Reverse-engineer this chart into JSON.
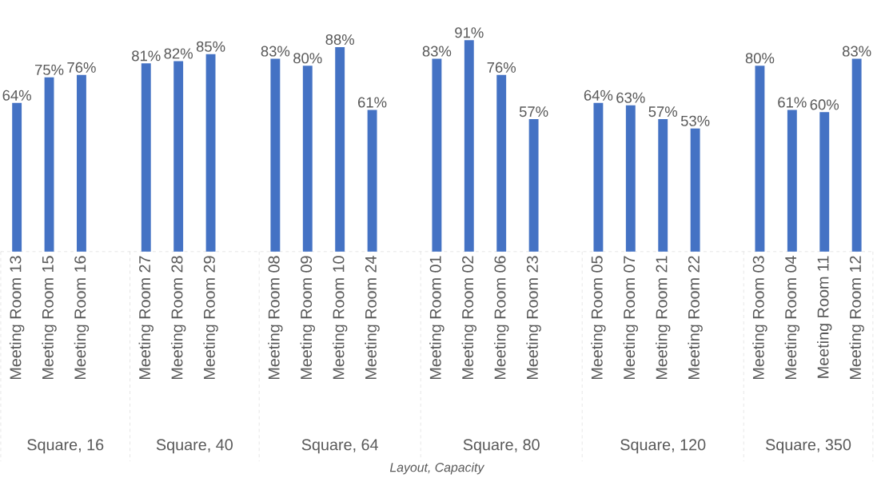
{
  "chart_data": {
    "type": "bar",
    "categories": [
      "Meeting Room 13",
      "Meeting Room 15",
      "Meeting Room 16",
      null,
      "Meeting Room 27",
      "Meeting Room 28",
      "Meeting Room 29",
      null,
      "Meeting Room 08",
      "Meeting Room 09",
      "Meeting Room 10",
      "Meeting Room 24",
      null,
      "Meeting Room 01",
      "Meeting Room 02",
      "Meeting Room 06",
      "Meeting Room 23",
      null,
      "Meeting Room 05",
      "Meeting Room 07",
      "Meeting Room 21",
      "Meeting Room 22",
      null,
      "Meeting Room 03",
      "Meeting Room 04",
      "Meeting Room 11",
      "Meeting Room 12"
    ],
    "values": [
      64,
      75,
      76,
      null,
      81,
      82,
      85,
      null,
      83,
      80,
      88,
      61,
      null,
      83,
      91,
      76,
      57,
      null,
      64,
      63,
      57,
      53,
      null,
      80,
      61,
      60,
      83
    ],
    "value_labels": [
      "64%",
      "75%",
      "76%",
      null,
      "81%",
      "82%",
      "85%",
      null,
      "83%",
      "80%",
      "88%",
      "61%",
      null,
      "83%",
      "91%",
      "76%",
      "57%",
      null,
      "64%",
      "63%",
      "57%",
      "53%",
      null,
      "80%",
      "61%",
      "60%",
      "83%"
    ],
    "color": "#4472c4",
    "grid": false,
    "annotations": [
      "Square, 16",
      "Square, 40",
      "Square, 64",
      "Square, 80",
      "Square, 120",
      "Square, 350",
      "Layout, Capacity"
    ]
  }
}
